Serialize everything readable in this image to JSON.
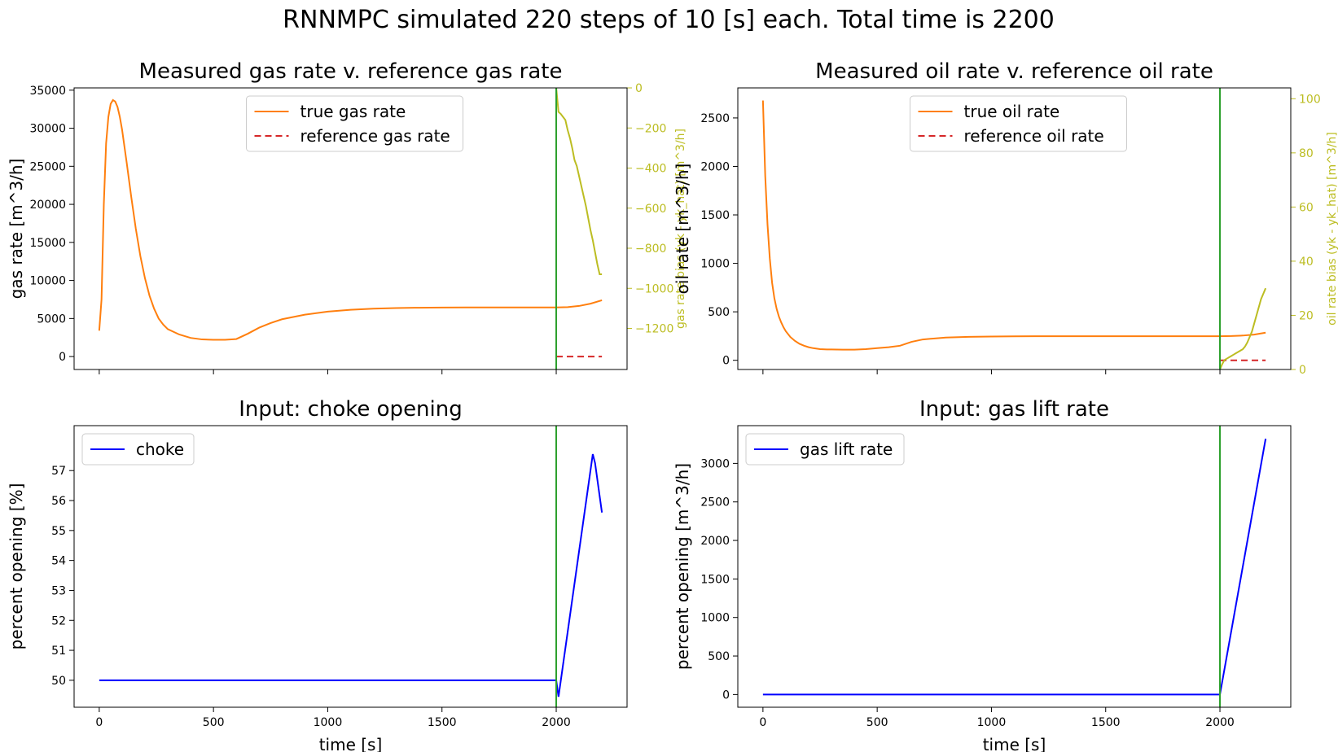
{
  "title": "RNNMPC simulated 220 steps of 10 [s] each. Total time is 2200",
  "colors": {
    "orange": "#ff7f0e",
    "red": "#d62728",
    "green": "#2ca02c",
    "olive": "#bcbd22",
    "blue": "#0000ff"
  },
  "chart_data": [
    {
      "type": "line",
      "title": "Measured gas rate v. reference gas rate",
      "xlabel": "",
      "ylabel": "gas rate [m^3/h]",
      "y2label": "gas rate bias (yk - yk_hat) [m^3/h]",
      "xlim": [
        -110,
        2310
      ],
      "ylim": [
        -1700,
        35300
      ],
      "y2lim": [
        -1405,
        0
      ],
      "xticks": [
        0,
        500,
        1000,
        1500,
        2000
      ],
      "yticks": [
        0,
        5000,
        10000,
        15000,
        20000,
        25000,
        30000,
        35000
      ],
      "ytick_labels": [
        "0",
        "5000",
        "10000",
        "15000",
        "20000",
        "25000",
        "30000",
        "35000"
      ],
      "y2ticks": [
        0,
        -200,
        -400,
        -600,
        -800,
        -1000,
        -1200
      ],
      "y2tick_labels": [
        "0",
        "−200",
        "−400",
        "−600",
        "−800",
        "−1000",
        "−1200"
      ],
      "show_xtick_labels": false,
      "vline": 2000,
      "legend": {
        "position": "top-center",
        "entries": [
          "true gas rate",
          "reference gas rate"
        ]
      },
      "series": [
        {
          "name": "true gas rate",
          "axis": "left",
          "style": "solid",
          "x": [
            0,
            10,
            20,
            30,
            40,
            50,
            60,
            70,
            80,
            90,
            100,
            120,
            140,
            160,
            180,
            200,
            220,
            240,
            260,
            280,
            300,
            350,
            400,
            450,
            500,
            550,
            600,
            650,
            700,
            750,
            800,
            900,
            1000,
            1100,
            1200,
            1300,
            1400,
            1500,
            1600,
            1700,
            1800,
            1900,
            2000,
            2050,
            2100,
            2150,
            2200
          ],
          "y": [
            3400,
            7500,
            20000,
            28000,
            31500,
            33200,
            33700,
            33500,
            32800,
            31500,
            29800,
            25500,
            21000,
            16800,
            13200,
            10300,
            8000,
            6300,
            5000,
            4200,
            3600,
            2900,
            2450,
            2250,
            2200,
            2200,
            2300,
            3000,
            3800,
            4400,
            4900,
            5500,
            5900,
            6150,
            6300,
            6380,
            6420,
            6440,
            6450,
            6450,
            6450,
            6450,
            6450,
            6500,
            6650,
            6950,
            7400
          ]
        },
        {
          "name": "reference gas rate",
          "axis": "left",
          "style": "dashed",
          "x": [
            2000,
            2200
          ],
          "y": [
            0,
            0
          ]
        },
        {
          "name": "",
          "axis": "right",
          "style": "solid",
          "x": [
            2000,
            2010,
            2020,
            2030,
            2040,
            2050,
            2060,
            2070,
            2080,
            2090,
            2100,
            2110,
            2120,
            2130,
            2140,
            2150,
            2160,
            2170,
            2180,
            2190,
            2200
          ],
          "y": [
            0,
            -120,
            -130,
            -145,
            -160,
            -210,
            -250,
            -300,
            -360,
            -390,
            -440,
            -490,
            -540,
            -590,
            -650,
            -710,
            -760,
            -820,
            -880,
            -930,
            -930
          ]
        }
      ]
    },
    {
      "type": "line",
      "title": "Measured oil rate v. reference oil rate",
      "xlabel": "",
      "ylabel": "oil rate [m^3/h]",
      "y2label": "oil rate bias (yk - yk_hat) [m^3/h]",
      "xlim": [
        -110,
        2310
      ],
      "ylim": [
        -95,
        2810
      ],
      "y2lim": [
        0,
        104
      ],
      "xticks": [
        0,
        500,
        1000,
        1500,
        2000
      ],
      "yticks": [
        0,
        500,
        1000,
        1500,
        2000,
        2500
      ],
      "ytick_labels": [
        "0",
        "500",
        "1000",
        "1500",
        "2000",
        "2500"
      ],
      "y2ticks": [
        0,
        20,
        40,
        60,
        80,
        100
      ],
      "y2tick_labels": [
        "0",
        "20",
        "40",
        "60",
        "80",
        "100"
      ],
      "show_xtick_labels": false,
      "vline": 2000,
      "legend": {
        "position": "top-center",
        "entries": [
          "true oil rate",
          "reference oil rate"
        ]
      },
      "series": [
        {
          "name": "true oil rate",
          "axis": "left",
          "style": "solid",
          "x": [
            0,
            10,
            20,
            30,
            40,
            50,
            60,
            70,
            80,
            90,
            100,
            120,
            140,
            160,
            180,
            200,
            220,
            250,
            280,
            300,
            350,
            400,
            450,
            500,
            550,
            600,
            650,
            700,
            800,
            900,
            1000,
            1100,
            1200,
            1300,
            1400,
            1500,
            1600,
            1700,
            1800,
            1900,
            2000,
            2050,
            2100,
            2150,
            2200
          ],
          "y": [
            2680,
            1900,
            1400,
            1050,
            800,
            640,
            530,
            450,
            390,
            340,
            300,
            240,
            200,
            170,
            150,
            135,
            125,
            115,
            112,
            112,
            110,
            110,
            115,
            125,
            135,
            150,
            190,
            215,
            235,
            242,
            245,
            247,
            248,
            248,
            248,
            248,
            248,
            248,
            248,
            248,
            248,
            250,
            255,
            265,
            285
          ]
        },
        {
          "name": "reference oil rate",
          "axis": "left",
          "style": "dashed",
          "x": [
            2000,
            2200
          ],
          "y": [
            0,
            0
          ]
        },
        {
          "name": "",
          "axis": "right",
          "style": "solid",
          "x": [
            2000,
            2010,
            2020,
            2030,
            2040,
            2050,
            2060,
            2070,
            2080,
            2090,
            2100,
            2110,
            2120,
            2130,
            2140,
            2150,
            2160,
            2170,
            2180,
            2190,
            2200
          ],
          "y": [
            0,
            2,
            3.5,
            4,
            4.5,
            5,
            5.5,
            6,
            6.5,
            7,
            7.5,
            8.5,
            10,
            12,
            14,
            17,
            20,
            23,
            26,
            28,
            30
          ]
        }
      ]
    },
    {
      "type": "line",
      "title": "Input: choke opening",
      "xlabel": "time [s]",
      "ylabel": "percent opening [%]",
      "xlim": [
        -110,
        2310
      ],
      "ylim": [
        49.1,
        58.5
      ],
      "xticks": [
        0,
        500,
        1000,
        1500,
        2000
      ],
      "xtick_labels": [
        "0",
        "500",
        "1000",
        "1500",
        "2000"
      ],
      "yticks": [
        50,
        51,
        52,
        53,
        54,
        55,
        56,
        57
      ],
      "ytick_labels": [
        "50",
        "51",
        "52",
        "53",
        "54",
        "55",
        "56",
        "57"
      ],
      "show_xtick_labels": true,
      "vline": 2000,
      "legend": {
        "position": "top-left",
        "entries": [
          "choke"
        ]
      },
      "series": [
        {
          "name": "choke",
          "axis": "left",
          "style": "solid",
          "x": [
            0,
            2000,
            2010,
            2160,
            2170,
            2200
          ],
          "y": [
            50,
            50,
            49.45,
            57.55,
            57.25,
            55.6
          ]
        }
      ]
    },
    {
      "type": "line",
      "title": "Input: gas lift rate",
      "xlabel": "time [s]",
      "ylabel": "percent opening [m^3/h]",
      "xlim": [
        -110,
        2310
      ],
      "ylim": [
        -165,
        3490
      ],
      "xticks": [
        0,
        500,
        1000,
        1500,
        2000
      ],
      "xtick_labels": [
        "0",
        "500",
        "1000",
        "1500",
        "2000"
      ],
      "yticks": [
        0,
        500,
        1000,
        1500,
        2000,
        2500,
        3000
      ],
      "ytick_labels": [
        "0",
        "500",
        "1000",
        "1500",
        "2000",
        "2500",
        "3000"
      ],
      "show_xtick_labels": true,
      "vline": 2000,
      "legend": {
        "position": "top-left",
        "entries": [
          "gas lift rate"
        ]
      },
      "series": [
        {
          "name": "gas lift rate",
          "axis": "left",
          "style": "solid",
          "x": [
            0,
            2000,
            2200
          ],
          "y": [
            0,
            0,
            3320
          ]
        }
      ]
    }
  ]
}
